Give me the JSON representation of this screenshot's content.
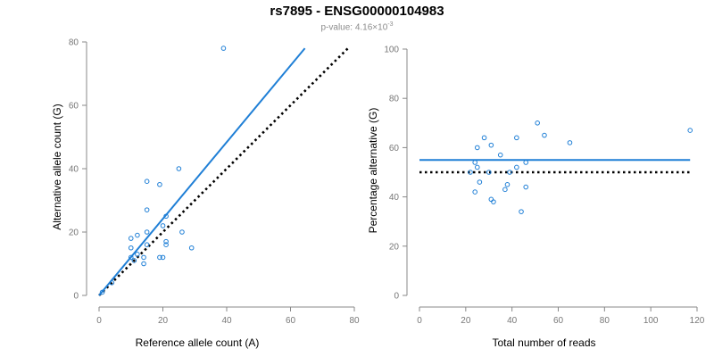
{
  "title": "rs7895 - ENSG00000104983",
  "subtitle": {
    "prefix": "p-value: 4.16×10",
    "exponent": "-3"
  },
  "colors": {
    "points": "#1f7fd6",
    "fit_line": "#1f7fd6",
    "reference_line": "#000000",
    "axis": "#888888"
  },
  "chart_data": [
    {
      "type": "scatter",
      "xlabel": "Reference allele count (A)",
      "ylabel": "Alternative allele count (G)",
      "xlim": [
        0,
        80
      ],
      "ylim": [
        0,
        80
      ],
      "xticks": [
        0,
        20,
        40,
        60,
        80
      ],
      "yticks": [
        0,
        20,
        40,
        60,
        80
      ],
      "points": [
        {
          "x": 1,
          "y": 1
        },
        {
          "x": 4,
          "y": 4
        },
        {
          "x": 10,
          "y": 12
        },
        {
          "x": 10,
          "y": 15
        },
        {
          "x": 10,
          "y": 18
        },
        {
          "x": 11,
          "y": 11
        },
        {
          "x": 12,
          "y": 13
        },
        {
          "x": 12,
          "y": 19
        },
        {
          "x": 14,
          "y": 10
        },
        {
          "x": 14,
          "y": 12
        },
        {
          "x": 15,
          "y": 16
        },
        {
          "x": 15,
          "y": 36
        },
        {
          "x": 15,
          "y": 27
        },
        {
          "x": 15,
          "y": 20
        },
        {
          "x": 19,
          "y": 35
        },
        {
          "x": 19,
          "y": 12
        },
        {
          "x": 20,
          "y": 12
        },
        {
          "x": 20,
          "y": 22
        },
        {
          "x": 21,
          "y": 25
        },
        {
          "x": 21,
          "y": 17
        },
        {
          "x": 21,
          "y": 16
        },
        {
          "x": 25,
          "y": 40
        },
        {
          "x": 26,
          "y": 20
        },
        {
          "x": 29,
          "y": 15
        },
        {
          "x": 39,
          "y": 78
        }
      ],
      "fit_line": {
        "x": [
          0,
          64.5
        ],
        "y": [
          0,
          78
        ]
      },
      "reference_line": {
        "x": [
          0,
          78
        ],
        "y": [
          0,
          78
        ]
      }
    },
    {
      "type": "scatter",
      "xlabel": "Total number of reads",
      "ylabel": "Percentage alternative (G)",
      "xlim": [
        0,
        120
      ],
      "ylim": [
        0,
        100
      ],
      "xticks": [
        0,
        20,
        40,
        60,
        80,
        100,
        120
      ],
      "yticks": [
        0,
        20,
        40,
        60,
        80,
        100
      ],
      "points": [
        {
          "x": 22,
          "y": 50
        },
        {
          "x": 24,
          "y": 42
        },
        {
          "x": 24,
          "y": 54
        },
        {
          "x": 25,
          "y": 52
        },
        {
          "x": 25,
          "y": 60
        },
        {
          "x": 26,
          "y": 46
        },
        {
          "x": 28,
          "y": 64
        },
        {
          "x": 30,
          "y": 50
        },
        {
          "x": 31,
          "y": 61
        },
        {
          "x": 31,
          "y": 39
        },
        {
          "x": 32,
          "y": 38
        },
        {
          "x": 35,
          "y": 57
        },
        {
          "x": 37,
          "y": 43
        },
        {
          "x": 38,
          "y": 45
        },
        {
          "x": 39,
          "y": 50
        },
        {
          "x": 42,
          "y": 52
        },
        {
          "x": 42,
          "y": 64
        },
        {
          "x": 44,
          "y": 34
        },
        {
          "x": 46,
          "y": 44
        },
        {
          "x": 46,
          "y": 54
        },
        {
          "x": 51,
          "y": 70
        },
        {
          "x": 54,
          "y": 65
        },
        {
          "x": 65,
          "y": 62
        },
        {
          "x": 117,
          "y": 67
        }
      ],
      "fit_line": {
        "x": [
          0,
          117
        ],
        "y": [
          55,
          55
        ]
      },
      "reference_line": {
        "x": [
          0,
          117
        ],
        "y": [
          50,
          50
        ]
      }
    }
  ]
}
